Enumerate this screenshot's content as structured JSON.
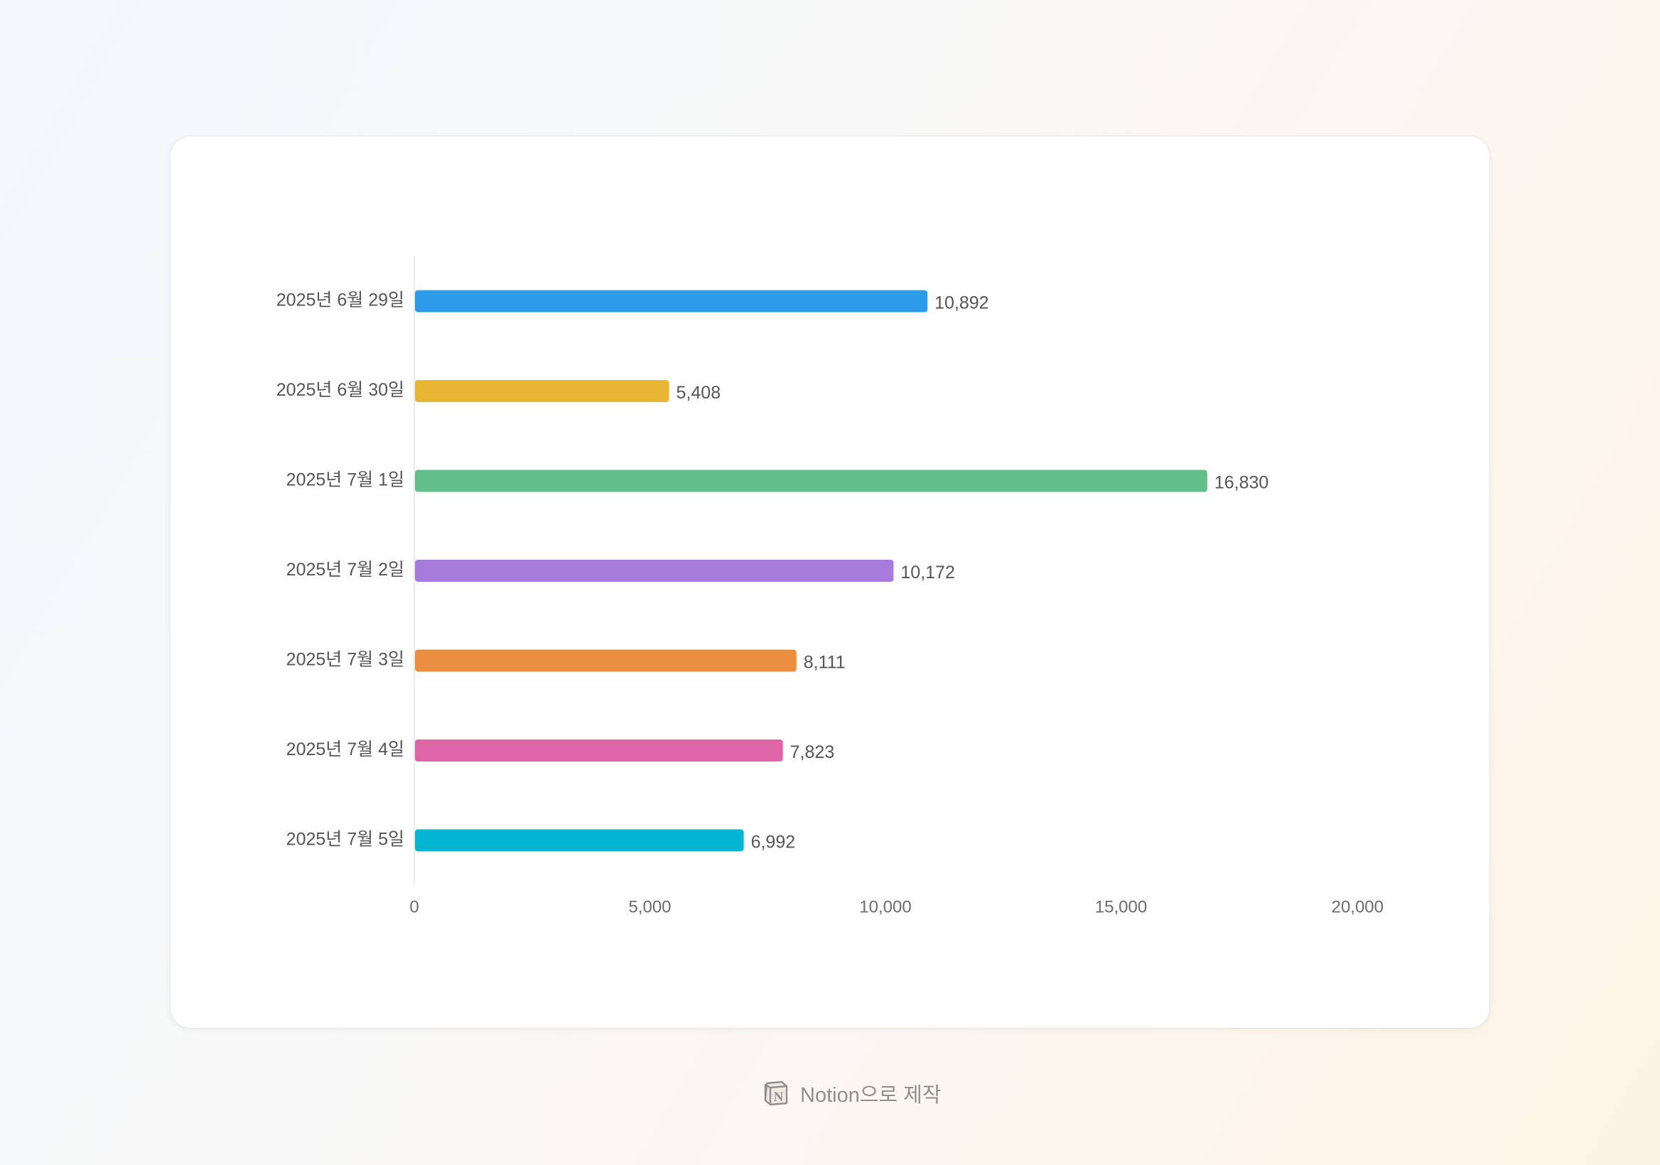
{
  "chart_data": {
    "type": "bar",
    "orientation": "horizontal",
    "title": "",
    "xlabel": "",
    "ylabel": "",
    "categories": [
      "2025년 6월 29일",
      "2025년 6월 30일",
      "2025년 7월 1일",
      "2025년 7월 2일",
      "2025년 7월 3일",
      "2025년 7월 4일",
      "2025년 7월 5일"
    ],
    "values": [
      10892,
      5408,
      16830,
      10172,
      8111,
      7823,
      6992
    ],
    "value_labels": [
      "10,892",
      "5,408",
      "16,830",
      "10,172",
      "8,111",
      "7,823",
      "6,992"
    ],
    "colors": [
      "#2d9be8",
      "#e8b634",
      "#62bf8c",
      "#a77bdc",
      "#ea8d41",
      "#de65a7",
      "#05b5d3"
    ],
    "xlim": [
      0,
      20000
    ],
    "xticks": [
      0,
      5000,
      10000,
      15000,
      20000
    ],
    "xtick_labels": [
      "0",
      "5,000",
      "10,000",
      "15,000",
      "20,000"
    ],
    "grid": false,
    "legend": "none"
  },
  "footer": {
    "logo_icon": "notion-logo-icon",
    "text": "Notion으로 제작"
  }
}
